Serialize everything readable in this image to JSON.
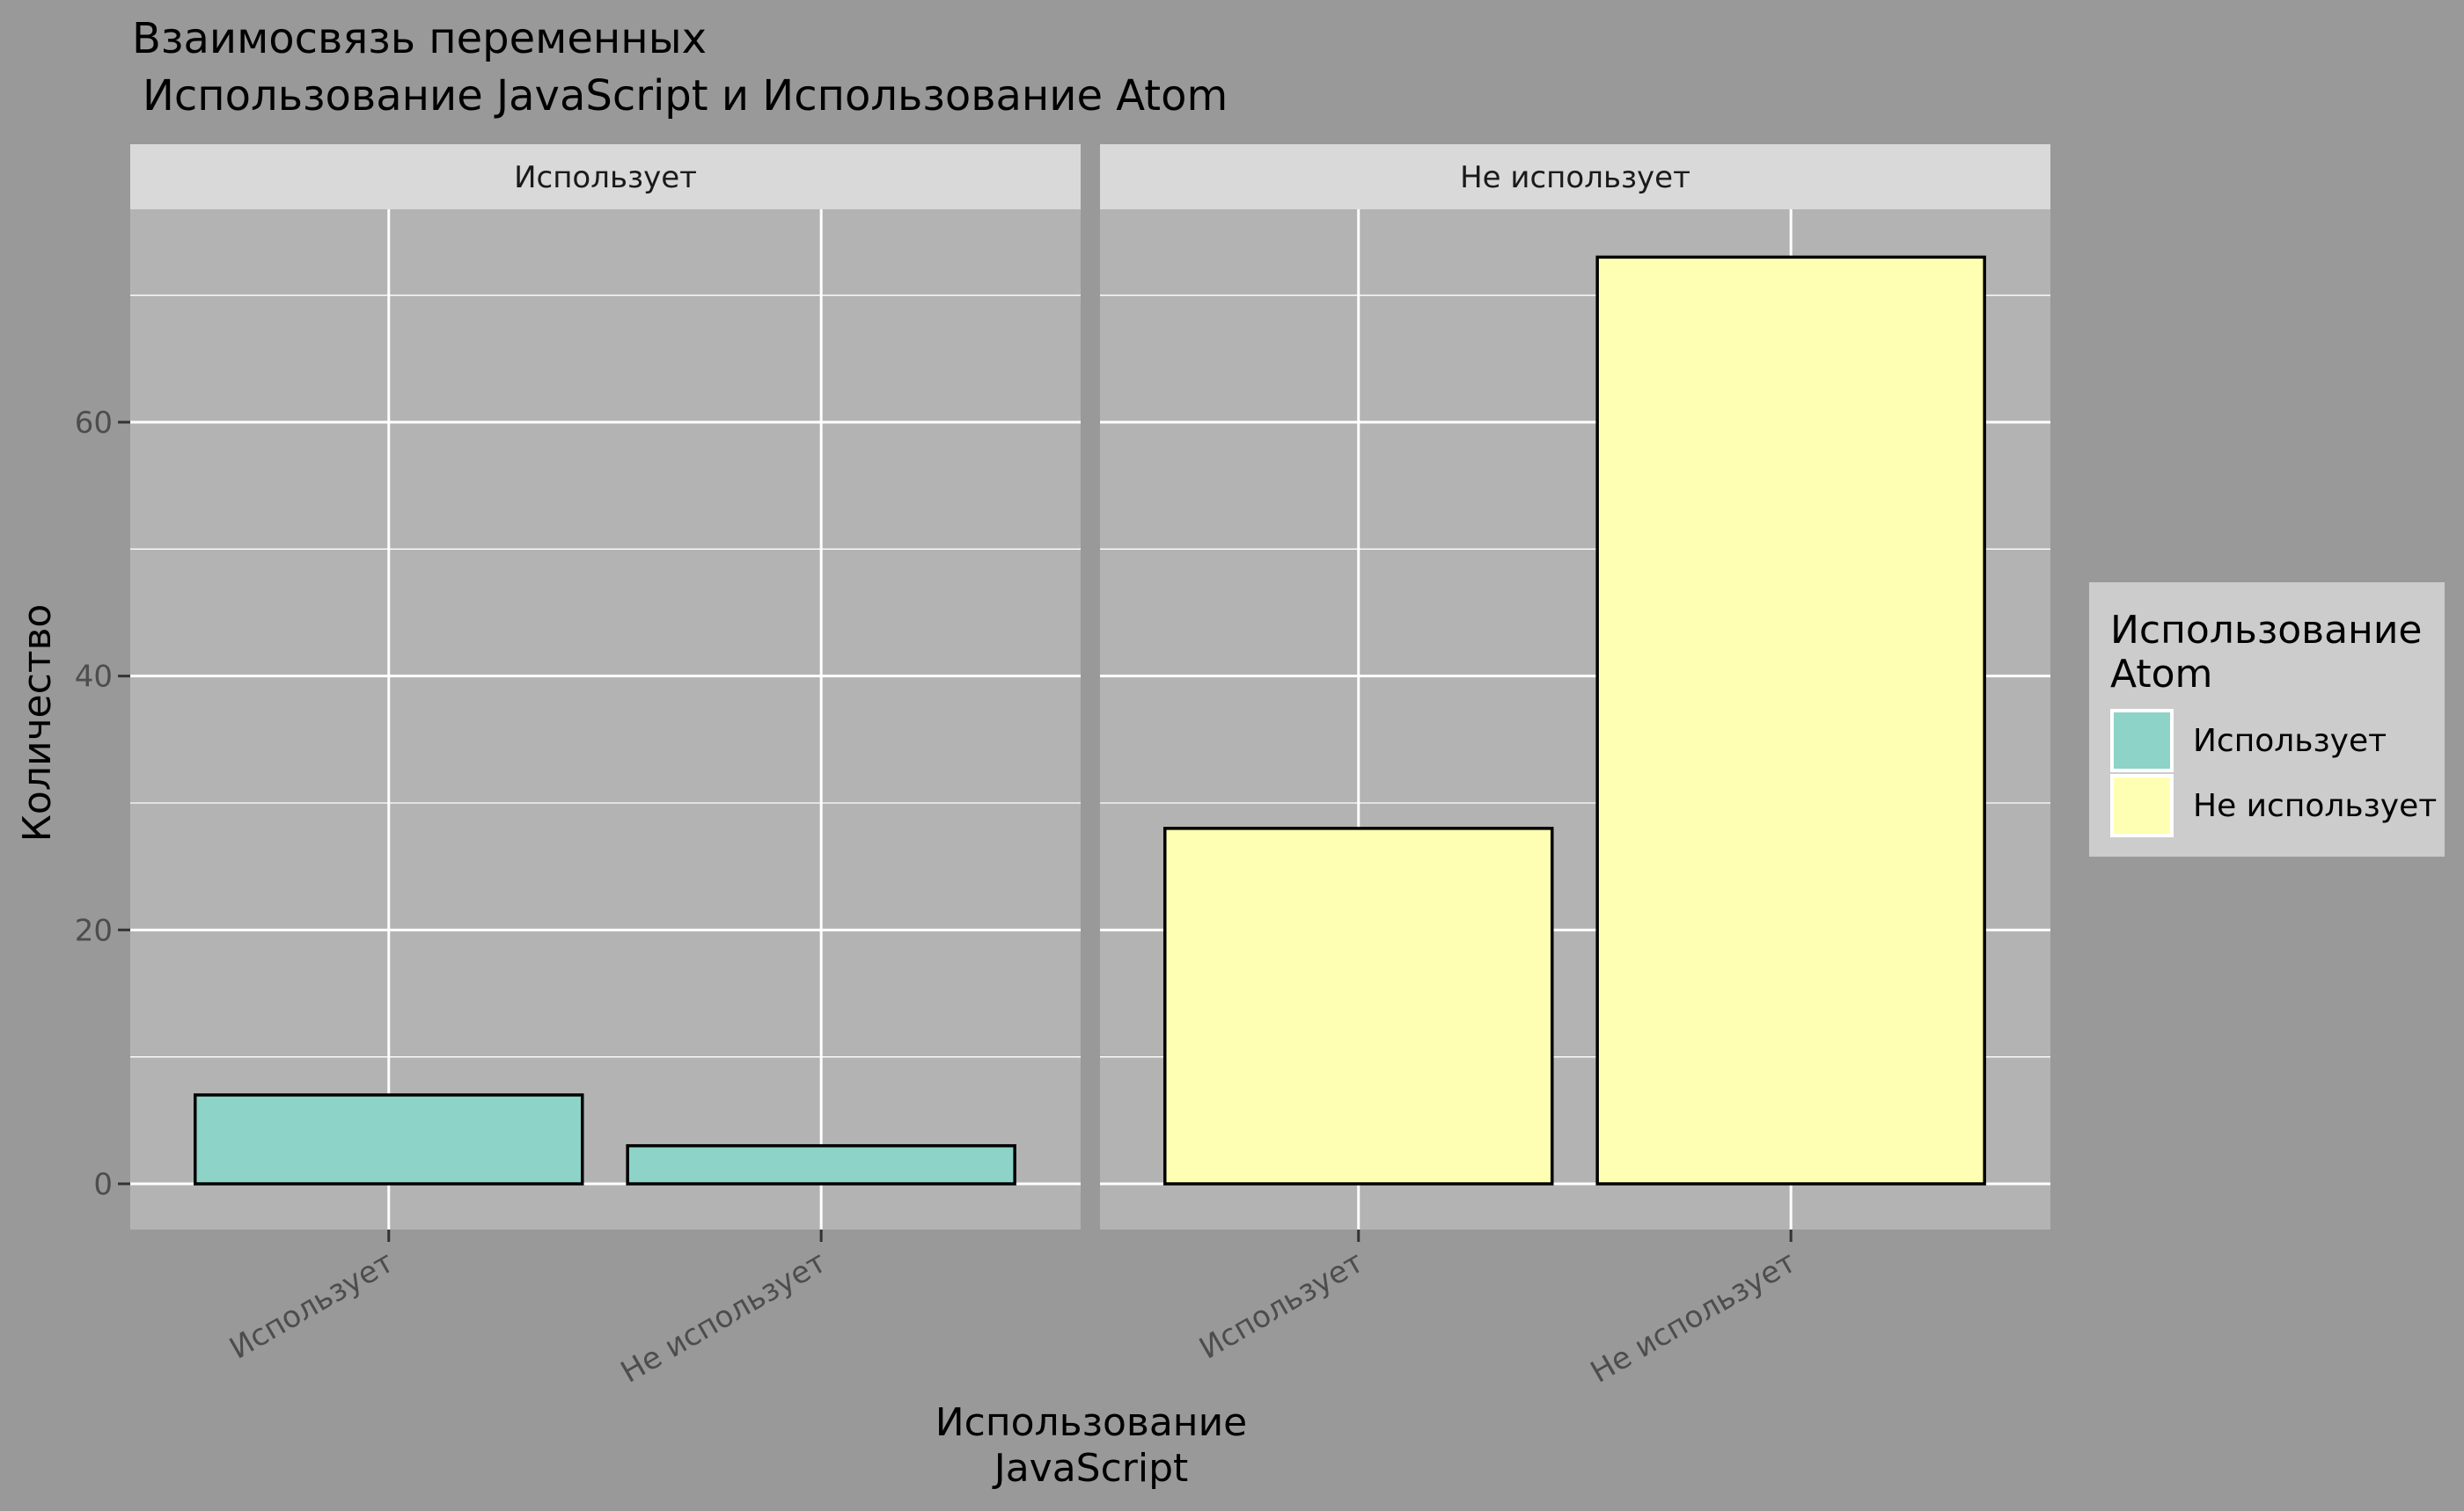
{
  "chart_data": {
    "type": "bar",
    "title": "Взаимосвязь переменных",
    "subtitle": "Использование JavaScript и Использование Atom",
    "xlabel": [
      "Использование",
      "JavaScript"
    ],
    "ylabel": "Количество",
    "ylim": [
      0,
      80
    ],
    "y_ticks": [
      0,
      20,
      40,
      60
    ],
    "grid": true,
    "categories": [
      "Использует",
      "Не использует"
    ],
    "facets": [
      {
        "label": "Использует",
        "fill": "#8DD3C7",
        "values": [
          7,
          3
        ]
      },
      {
        "label": "Не использует",
        "fill": "#FFFFB3",
        "values": [
          28,
          73
        ]
      }
    ],
    "legend": {
      "title": [
        "Использование",
        "Atom"
      ],
      "position": "right",
      "items": [
        {
          "label": "Использует",
          "color": "#8DD3C7"
        },
        {
          "label": "Не использует",
          "color": "#FFFFB3"
        }
      ]
    },
    "colors": {
      "background": "#999999",
      "panel": "#B3B3B3",
      "strip": "#D9D9D9",
      "legend_bg": "#CCCCCC",
      "grid": "#FFFFFF",
      "bar_outline": "#000000"
    }
  }
}
